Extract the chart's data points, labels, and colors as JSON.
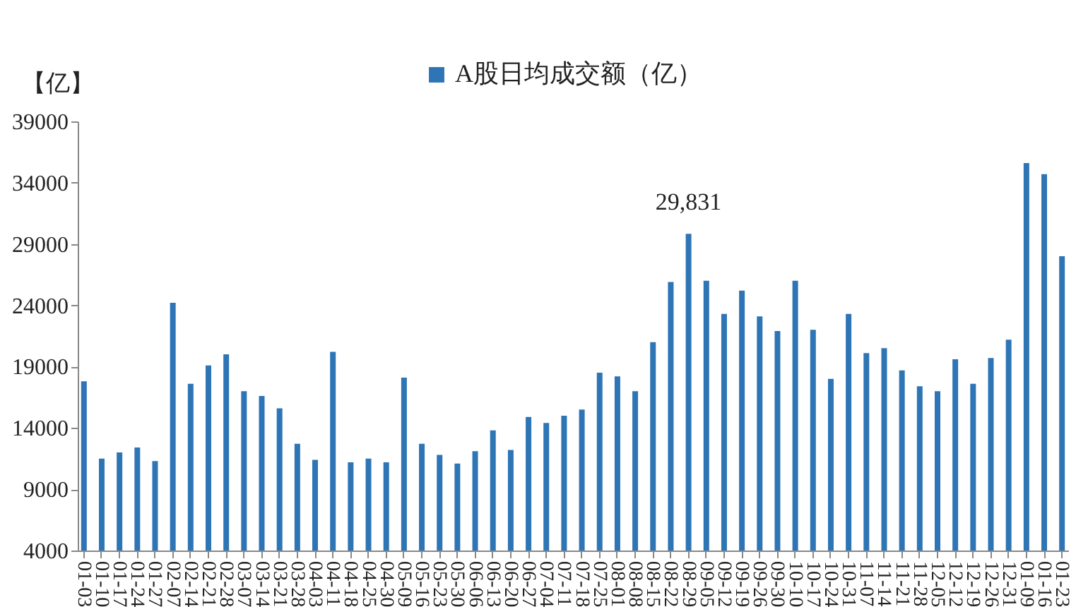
{
  "chart_data": {
    "type": "bar",
    "ylabel": "【亿】",
    "categories": [
      "01-03",
      "01-10",
      "01-17",
      "01-24",
      "01-27",
      "02-07",
      "02-14",
      "02-21",
      "02-28",
      "03-07",
      "03-14",
      "03-21",
      "03-28",
      "04-03",
      "04-11",
      "04-18",
      "04-25",
      "04-30",
      "05-09",
      "05-16",
      "05-23",
      "05-30",
      "06-06",
      "06-13",
      "06-20",
      "06-27",
      "07-04",
      "07-11",
      "07-18",
      "07-25",
      "08-01",
      "08-08",
      "08-15",
      "08-22",
      "08-29",
      "09-05",
      "09-12",
      "09-19",
      "09-26",
      "09-30",
      "10-10",
      "10-17",
      "10-24",
      "10-31",
      "11-07",
      "11-14",
      "11-21",
      "11-28",
      "12-05",
      "12-12",
      "12-19",
      "12-26",
      "12-31",
      "01-09",
      "01-16",
      "01-23"
    ],
    "series": [
      {
        "name": "A股日均成交额（亿）",
        "color": "#2e75b6",
        "values": [
          17800,
          11500,
          12000,
          12400,
          11300,
          24200,
          17600,
          19100,
          20000,
          17000,
          16600,
          15600,
          12700,
          11400,
          20200,
          11200,
          11500,
          11200,
          18100,
          12700,
          11800,
          11100,
          12100,
          13800,
          12200,
          14900,
          14400,
          15000,
          15500,
          18500,
          18200,
          17000,
          21000,
          25900,
          29831,
          26000,
          23300,
          25200,
          23100,
          21900,
          26000,
          22000,
          18000,
          23300,
          20100,
          20500,
          18700,
          17400,
          17000,
          19600,
          17600,
          19700,
          21200,
          35600,
          34700,
          28000
        ]
      }
    ],
    "annotations": [
      {
        "text": "29,831",
        "x": "08-29",
        "y": 29831
      }
    ],
    "ylim": [
      4000,
      39000
    ],
    "yticks": [
      4000,
      9000,
      14000,
      19000,
      24000,
      29000,
      34000,
      39000
    ],
    "grid": false,
    "legend": "top"
  }
}
